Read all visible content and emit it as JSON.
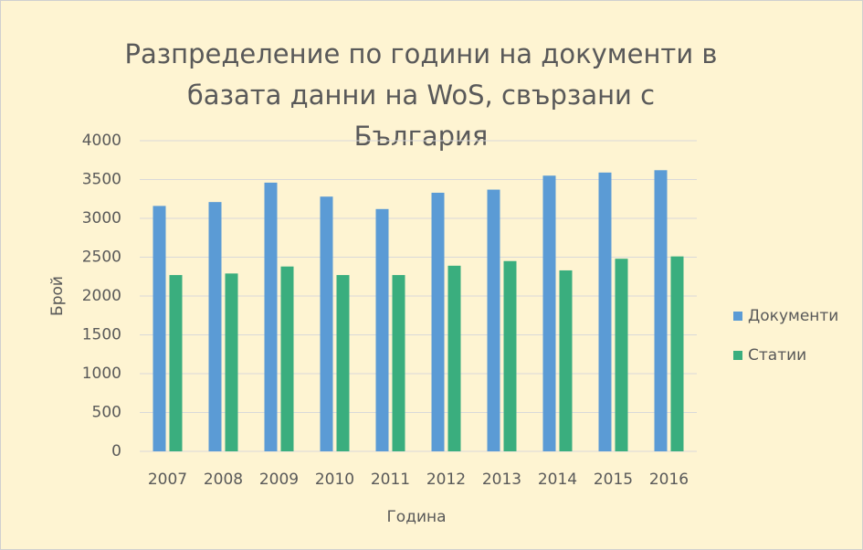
{
  "chart_data": {
    "type": "bar",
    "title": "Разпределение по години на документи в базата данни на WoS, свързани с България",
    "x_label": "Година",
    "y_label": "Брой",
    "categories": [
      "2007",
      "2008",
      "2009",
      "2010",
      "2011",
      "2012",
      "2013",
      "2014",
      "2015",
      "2016"
    ],
    "series": [
      {
        "name": "Документи",
        "color": "#5b9bd5",
        "values": [
          3160,
          3210,
          3460,
          3280,
          3120,
          3330,
          3370,
          3550,
          3590,
          3620
        ]
      },
      {
        "name": "Статии",
        "color": "#3aae7e",
        "values": [
          2270,
          2290,
          2380,
          2270,
          2270,
          2390,
          2450,
          2330,
          2480,
          2510
        ]
      }
    ],
    "ylim": [
      0,
      4000
    ],
    "yticks": [
      0,
      500,
      1000,
      1500,
      2000,
      2500,
      3000,
      3500,
      4000
    ],
    "grid": true,
    "legend": "right"
  }
}
